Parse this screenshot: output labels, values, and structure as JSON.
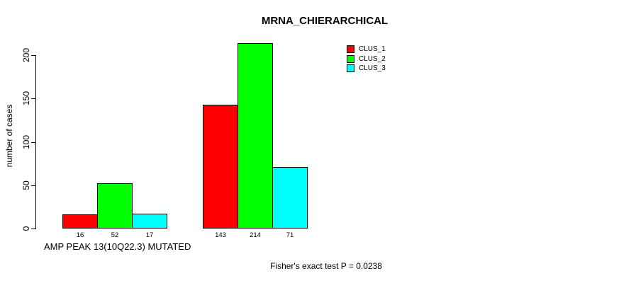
{
  "chart_data": {
    "type": "bar",
    "title": "MRNA_CHIERARCHICAL",
    "ylabel": "number of cases",
    "xlabel": "AMP PEAK 13(10Q22.3) MUTATED",
    "annotation": "Fisher's exact test P = 0.0238",
    "ylim": [
      0,
      200
    ],
    "yticks": [
      0,
      50,
      100,
      150,
      200
    ],
    "grid": false,
    "legend_position": "top-right-inside",
    "bar_value_labels_shown": true,
    "categories": [
      "AMP PEAK 13(10Q22.3) MUTATED",
      ""
    ],
    "series": [
      {
        "name": "CLUS_1",
        "color": "#ff0000",
        "values": [
          16,
          143
        ]
      },
      {
        "name": "CLUS_2",
        "color": "#00ff00",
        "values": [
          52,
          214
        ]
      },
      {
        "name": "CLUS_3",
        "color": "#00ffff",
        "values": [
          17,
          71
        ]
      }
    ]
  }
}
